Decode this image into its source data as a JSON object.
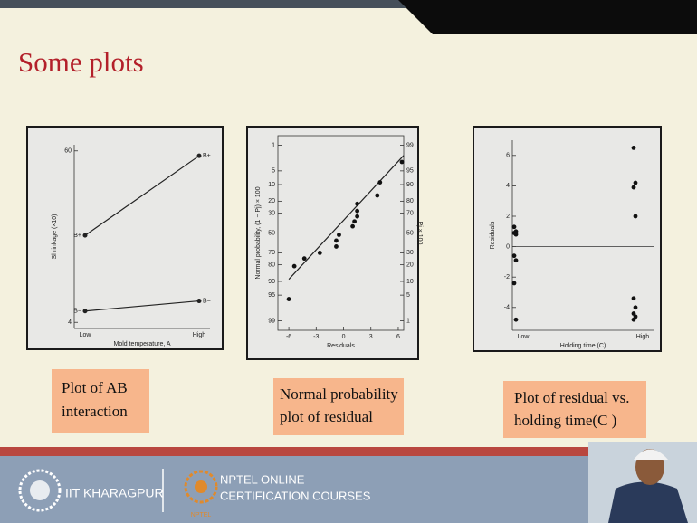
{
  "header": {
    "title": "Some plots"
  },
  "chart_data": [
    {
      "type": "line",
      "xlabel": "Mold temperature, A",
      "ylabel": "Shrinkage (×10)",
      "categories": [
        "Low",
        "High"
      ],
      "series": [
        {
          "name": "B+",
          "color": "#222222",
          "values": [
            32.4,
            58.4
          ]
        },
        {
          "name": "B−",
          "color": "#222222",
          "values": [
            7.7,
            11
          ]
        }
      ],
      "ylim": [
        2,
        62
      ],
      "yticks": [
        4,
        60
      ]
    },
    {
      "type": "scatter",
      "xlabel": "Residuals",
      "ylabel": "Normal probability, (1 − Pj) × 100",
      "y2label": "Pj × 100",
      "x": [
        -6.0,
        -5.4,
        -4.3,
        -2.6,
        -0.8,
        -0.8,
        -0.5,
        1.0,
        1.2,
        1.5,
        1.5,
        1.5,
        3.7,
        4.0,
        6.4
      ],
      "y": [
        4,
        19,
        25,
        30,
        36,
        42,
        48,
        57,
        62,
        67,
        72,
        78,
        84,
        91,
        97
      ],
      "axis": "y2",
      "color": "#111111",
      "yscale": "normal-probability",
      "xlim": [
        -7.2,
        6.6
      ],
      "xticks": [
        -6,
        -3,
        0,
        3,
        6
      ],
      "ylim": [
        99.5,
        0.5
      ],
      "yticks": [
        1,
        5,
        10,
        20,
        30,
        50,
        70,
        80,
        90,
        95,
        99
      ],
      "y2lim": [
        0.5,
        99.5
      ],
      "y2ticks": [
        99,
        95,
        90,
        80,
        70,
        50,
        30,
        20,
        10,
        5,
        1
      ],
      "fit_line": {
        "x": [
          -6,
          6.6
        ],
        "y": [
          11,
          98
        ]
      }
    },
    {
      "type": "strip",
      "xlabel": "Holding time (C)",
      "ylabel": "Residuals",
      "categories": [
        "Low",
        "High"
      ],
      "values": [
        [
          1.3,
          1.0,
          0.9,
          0.8,
          -0.6,
          -0.9,
          -2.4,
          -4.8
        ],
        [
          6.5,
          4.2,
          3.9,
          2.0,
          -3.4,
          -4.0,
          -4.4,
          -4.6,
          -4.8
        ]
      ],
      "color": "#111111",
      "ylim": [
        -5.5,
        7
      ],
      "yticks": [
        -4,
        -2,
        0,
        2,
        4,
        6
      ],
      "reference_line": 0
    }
  ],
  "captions": [
    [
      "Plot of AB",
      "interaction"
    ],
    [
      "Normal probability",
      "plot of residual"
    ],
    [
      "Plot of residual vs.",
      "holding time(C )"
    ]
  ],
  "footer": {
    "institute": "IIT KHARAGPUR",
    "nptel_line1": "NPTEL ONLINE",
    "nptel_line2": "CERTIFICATION COURSES",
    "nptel_logo": "NPTEL"
  }
}
